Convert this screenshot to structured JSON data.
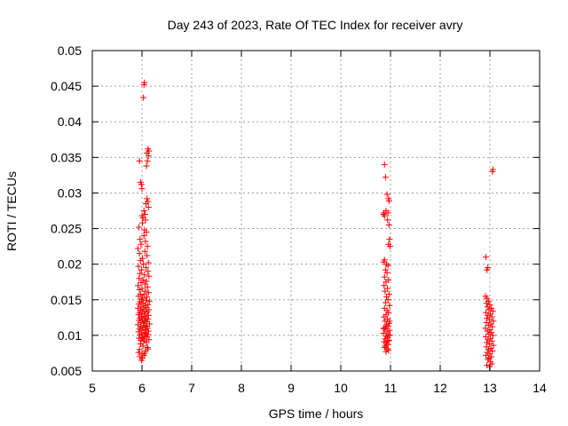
{
  "chart_data": {
    "type": "scatter",
    "title": "Day 243 of 2023, Rate Of TEC Index for receiver avry",
    "xlabel": "GPS time / hours",
    "ylabel": "ROTI / TECUs",
    "xlim": [
      5,
      14
    ],
    "ylim": [
      0.005,
      0.05
    ],
    "x_ticks": [
      5,
      6,
      7,
      8,
      9,
      10,
      11,
      12,
      13,
      14
    ],
    "y_ticks": [
      0.005,
      0.01,
      0.015,
      0.02,
      0.025,
      0.03,
      0.035,
      0.04,
      0.045,
      0.05
    ],
    "x_tick_labels": [
      "5",
      "6",
      "7",
      "8",
      "9",
      "10",
      "11",
      "12",
      "13",
      "14"
    ],
    "y_tick_labels": [
      "0.005",
      "0.01",
      "0.015",
      "0.02",
      "0.025",
      "0.03",
      "0.035",
      "0.04",
      "0.045",
      "0.05"
    ],
    "grid": true,
    "marker": "plus",
    "color": "#ff0000",
    "series": [
      {
        "points": [
          [
            6.05,
            0.0455
          ],
          [
            6.04,
            0.0452
          ],
          [
            6.03,
            0.0434
          ],
          [
            6.12,
            0.0362
          ],
          [
            6.14,
            0.0359
          ],
          [
            6.1,
            0.0356
          ],
          [
            6.13,
            0.0352
          ],
          [
            5.95,
            0.0345
          ],
          [
            6.11,
            0.0345
          ],
          [
            6.09,
            0.0338
          ],
          [
            5.97,
            0.0315
          ],
          [
            5.99,
            0.0312
          ],
          [
            6.0,
            0.0306
          ],
          [
            6.1,
            0.0292
          ],
          [
            6.12,
            0.0288
          ],
          [
            6.08,
            0.0285
          ],
          [
            6.13,
            0.028
          ],
          [
            6.04,
            0.0275
          ],
          [
            6.06,
            0.027
          ],
          [
            6.0,
            0.0268
          ],
          [
            6.02,
            0.0265
          ],
          [
            6.07,
            0.0262
          ],
          [
            6.01,
            0.0258
          ],
          [
            5.94,
            0.0252
          ],
          [
            6.05,
            0.0248
          ],
          [
            6.09,
            0.0245
          ],
          [
            6.04,
            0.024
          ],
          [
            5.96,
            0.0235
          ],
          [
            6.07,
            0.0232
          ],
          [
            5.98,
            0.0228
          ],
          [
            6.11,
            0.0225
          ],
          [
            5.92,
            0.0222
          ],
          [
            6.06,
            0.0218
          ],
          [
            5.95,
            0.0215
          ],
          [
            6.1,
            0.0212
          ],
          [
            6.01,
            0.0208
          ],
          [
            5.97,
            0.0205
          ],
          [
            6.13,
            0.0202
          ],
          [
            6.03,
            0.02
          ],
          [
            5.93,
            0.0197
          ],
          [
            6.08,
            0.0195
          ],
          [
            5.99,
            0.0192
          ],
          [
            6.12,
            0.019
          ],
          [
            5.96,
            0.0187
          ],
          [
            6.05,
            0.0185
          ],
          [
            6.14,
            0.0183
          ],
          [
            5.94,
            0.018
          ],
          [
            6.02,
            0.0178
          ],
          [
            6.09,
            0.0176
          ],
          [
            5.98,
            0.0174
          ],
          [
            6.06,
            0.0172
          ],
          [
            5.92,
            0.017
          ],
          [
            6.11,
            0.0168
          ],
          [
            6.0,
            0.0166
          ],
          [
            5.95,
            0.0164
          ],
          [
            6.07,
            0.0162
          ],
          [
            6.13,
            0.016
          ],
          [
            5.97,
            0.0158
          ],
          [
            6.04,
            0.0157
          ],
          [
            5.93,
            0.0155
          ],
          [
            6.1,
            0.0154
          ],
          [
            6.01,
            0.0152
          ],
          [
            5.99,
            0.015
          ],
          [
            6.08,
            0.0149
          ],
          [
            6.15,
            0.0148
          ],
          [
            5.96,
            0.0147
          ],
          [
            6.03,
            0.0145
          ],
          [
            5.94,
            0.0144
          ],
          [
            6.12,
            0.0143
          ],
          [
            6.06,
            0.0142
          ],
          [
            5.98,
            0.014
          ],
          [
            6.09,
            0.0139
          ],
          [
            5.92,
            0.0138
          ],
          [
            6.02,
            0.0137
          ],
          [
            6.14,
            0.0136
          ],
          [
            5.97,
            0.0135
          ],
          [
            6.05,
            0.0134
          ],
          [
            6.11,
            0.0133
          ],
          [
            5.95,
            0.0132
          ],
          [
            6.0,
            0.0131
          ],
          [
            6.07,
            0.013
          ],
          [
            5.93,
            0.0129
          ],
          [
            6.13,
            0.0128
          ],
          [
            6.04,
            0.0127
          ],
          [
            5.99,
            0.0126
          ],
          [
            6.08,
            0.0125
          ],
          [
            5.96,
            0.0124
          ],
          [
            6.12,
            0.0123
          ],
          [
            6.01,
            0.0122
          ],
          [
            5.94,
            0.0121
          ],
          [
            6.06,
            0.012
          ],
          [
            6.1,
            0.0119
          ],
          [
            5.98,
            0.0118
          ],
          [
            6.03,
            0.0117
          ],
          [
            6.15,
            0.0116
          ],
          [
            5.92,
            0.0115
          ],
          [
            6.05,
            0.0114
          ],
          [
            6.09,
            0.0113
          ],
          [
            5.97,
            0.0112
          ],
          [
            6.02,
            0.0111
          ],
          [
            6.11,
            0.011
          ],
          [
            5.95,
            0.0109
          ],
          [
            6.07,
            0.0108
          ],
          [
            6.0,
            0.0107
          ],
          [
            6.13,
            0.0106
          ],
          [
            5.93,
            0.0105
          ],
          [
            6.04,
            0.0104
          ],
          [
            6.08,
            0.0103
          ],
          [
            5.99,
            0.0102
          ],
          [
            6.12,
            0.0101
          ],
          [
            5.96,
            0.01
          ],
          [
            6.06,
            0.0099
          ],
          [
            6.1,
            0.0098
          ],
          [
            6.01,
            0.0097
          ],
          [
            5.94,
            0.0096
          ],
          [
            6.03,
            0.0095
          ],
          [
            6.14,
            0.0094
          ],
          [
            5.98,
            0.0093
          ],
          [
            6.05,
            0.0092
          ],
          [
            6.09,
            0.009
          ],
          [
            5.97,
            0.0088
          ],
          [
            6.02,
            0.0085
          ],
          [
            6.11,
            0.0083
          ],
          [
            5.95,
            0.008
          ],
          [
            6.07,
            0.0078
          ],
          [
            5.93,
            0.0076
          ],
          [
            6.0,
            0.0074
          ],
          [
            6.04,
            0.0072
          ],
          [
            5.96,
            0.007
          ],
          [
            6.01,
            0.0068
          ],
          [
            5.99,
            0.0065
          ],
          [
            6.06,
            0.0075
          ],
          [
            6.12,
            0.0081
          ],
          [
            10.88,
            0.034
          ],
          [
            10.9,
            0.0322
          ],
          [
            10.93,
            0.0298
          ],
          [
            10.96,
            0.0292
          ],
          [
            10.97,
            0.0289
          ],
          [
            10.87,
            0.0272
          ],
          [
            10.86,
            0.027
          ],
          [
            10.88,
            0.0268
          ],
          [
            10.91,
            0.0275
          ],
          [
            10.95,
            0.0272
          ],
          [
            10.94,
            0.0262
          ],
          [
            10.97,
            0.0255
          ],
          [
            10.98,
            0.0235
          ],
          [
            10.96,
            0.0228
          ],
          [
            10.99,
            0.0225
          ],
          [
            10.88,
            0.0206
          ],
          [
            10.86,
            0.0203
          ],
          [
            10.92,
            0.02
          ],
          [
            10.95,
            0.0198
          ],
          [
            10.9,
            0.0192
          ],
          [
            10.93,
            0.0188
          ],
          [
            10.88,
            0.0182
          ],
          [
            10.96,
            0.0178
          ],
          [
            10.91,
            0.0175
          ],
          [
            10.87,
            0.017
          ],
          [
            10.94,
            0.0166
          ],
          [
            10.89,
            0.0162
          ],
          [
            10.97,
            0.0158
          ],
          [
            10.92,
            0.0154
          ],
          [
            10.95,
            0.015
          ],
          [
            10.9,
            0.0146
          ],
          [
            10.98,
            0.0142
          ],
          [
            10.88,
            0.0138
          ],
          [
            10.93,
            0.0135
          ],
          [
            10.96,
            0.0132
          ],
          [
            10.91,
            0.0129
          ],
          [
            10.87,
            0.0126
          ],
          [
            10.94,
            0.0123
          ],
          [
            10.89,
            0.012
          ],
          [
            10.97,
            0.0117
          ],
          [
            10.92,
            0.0115
          ],
          [
            10.95,
            0.0113
          ],
          [
            10.9,
            0.0111
          ],
          [
            10.88,
            0.0109
          ],
          [
            10.98,
            0.0107
          ],
          [
            10.93,
            0.0105
          ],
          [
            10.86,
            0.0103
          ],
          [
            10.96,
            0.0101
          ],
          [
            10.91,
            0.0099
          ],
          [
            10.94,
            0.0097
          ],
          [
            10.89,
            0.0095
          ],
          [
            10.97,
            0.0093
          ],
          [
            10.87,
            0.0091
          ],
          [
            10.92,
            0.0089
          ],
          [
            10.95,
            0.0087
          ],
          [
            10.9,
            0.0085
          ],
          [
            10.88,
            0.0083
          ],
          [
            10.93,
            0.0081
          ],
          [
            10.96,
            0.0079
          ],
          [
            10.91,
            0.0077
          ],
          [
            10.94,
            0.0092
          ],
          [
            10.99,
            0.01
          ],
          [
            10.86,
            0.011
          ],
          [
            10.98,
            0.012
          ],
          [
            13.06,
            0.0333
          ],
          [
            13.05,
            0.033
          ],
          [
            12.92,
            0.021
          ],
          [
            12.96,
            0.0195
          ],
          [
            12.94,
            0.0192
          ],
          [
            12.91,
            0.0155
          ],
          [
            12.94,
            0.0152
          ],
          [
            12.97,
            0.0148
          ],
          [
            12.93,
            0.0145
          ],
          [
            13.0,
            0.0143
          ],
          [
            12.95,
            0.014
          ],
          [
            13.03,
            0.0138
          ],
          [
            12.98,
            0.0136
          ],
          [
            13.06,
            0.0134
          ],
          [
            12.92,
            0.0132
          ],
          [
            13.01,
            0.013
          ],
          [
            12.96,
            0.0128
          ],
          [
            13.04,
            0.0126
          ],
          [
            12.94,
            0.0124
          ],
          [
            12.99,
            0.0122
          ],
          [
            13.07,
            0.012
          ],
          [
            12.93,
            0.0118
          ],
          [
            13.02,
            0.0116
          ],
          [
            12.97,
            0.0114
          ],
          [
            13.05,
            0.0112
          ],
          [
            12.91,
            0.011
          ],
          [
            13.0,
            0.0108
          ],
          [
            12.95,
            0.0106
          ],
          [
            13.03,
            0.0104
          ],
          [
            12.98,
            0.0102
          ],
          [
            13.06,
            0.01
          ],
          [
            12.92,
            0.0098
          ],
          [
            13.01,
            0.0096
          ],
          [
            12.96,
            0.0094
          ],
          [
            13.04,
            0.0092
          ],
          [
            12.94,
            0.009
          ],
          [
            12.99,
            0.0088
          ],
          [
            13.07,
            0.0086
          ],
          [
            12.93,
            0.0084
          ],
          [
            13.02,
            0.0082
          ],
          [
            12.97,
            0.008
          ],
          [
            13.05,
            0.0078
          ],
          [
            12.95,
            0.0076
          ],
          [
            13.0,
            0.0074
          ],
          [
            12.92,
            0.0072
          ],
          [
            13.03,
            0.007
          ],
          [
            12.98,
            0.0068
          ],
          [
            12.96,
            0.0066
          ],
          [
            13.01,
            0.0063
          ],
          [
            12.94,
            0.0058
          ],
          [
            12.99,
            0.0056
          ],
          [
            13.04,
            0.006
          ]
        ]
      }
    ]
  }
}
